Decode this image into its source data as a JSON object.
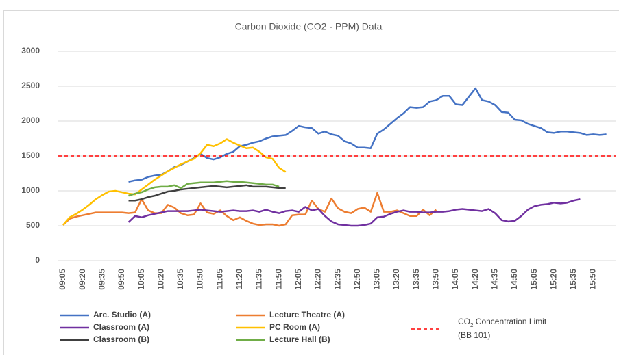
{
  "chart_data": {
    "type": "line",
    "title": "Carbon Dioxide (CO2 - PPM) Data",
    "categories": [
      "09:05",
      null,
      null,
      "09:20",
      null,
      null,
      "09:35",
      null,
      null,
      "09:50",
      null,
      null,
      "10:05",
      null,
      null,
      "10:20",
      null,
      null,
      "10:35",
      null,
      null,
      "10:50",
      null,
      null,
      "11:05",
      null,
      null,
      "11:20",
      null,
      null,
      "11:35",
      null,
      null,
      "11:50",
      null,
      null,
      "12:05",
      null,
      null,
      "12:20",
      null,
      null,
      "12:35",
      null,
      null,
      "12:50",
      null,
      null,
      "13:05",
      null,
      null,
      "13:20",
      null,
      null,
      "13:35",
      null,
      null,
      "13:50",
      null,
      null,
      "14:05",
      null,
      null,
      "14:20",
      null,
      null,
      "14:35",
      null,
      null,
      "14:50",
      null,
      null,
      "15:05",
      null,
      null,
      "15:20",
      null,
      null,
      "15:35",
      null,
      null,
      "15:50",
      null,
      null
    ],
    "series": [
      {
        "name": "Arc. Studio (A)",
        "color": "#4472c4",
        "values": [
          null,
          null,
          null,
          null,
          null,
          null,
          null,
          null,
          null,
          null,
          1130,
          1150,
          1160,
          1200,
          1220,
          1230,
          1280,
          1340,
          1370,
          1420,
          1470,
          1530,
          1470,
          1450,
          1480,
          1530,
          1560,
          1640,
          1660,
          1690,
          1710,
          1750,
          1780,
          1790,
          1800,
          1860,
          1930,
          1910,
          1900,
          1820,
          1850,
          1810,
          1790,
          1710,
          1680,
          1620,
          1620,
          1610,
          1820,
          1880,
          1960,
          2040,
          2110,
          2200,
          2190,
          2200,
          2280,
          2300,
          2360,
          2360,
          2240,
          2230,
          2350,
          2470,
          2300,
          2280,
          2230,
          2130,
          2120,
          2020,
          2010,
          1960,
          1930,
          1900,
          1840,
          1830,
          1850,
          1850,
          1840,
          1830,
          1800,
          1810,
          1800,
          1810
        ]
      },
      {
        "name": "Lecture Theatre (A)",
        "color": "#ed7d31",
        "values": [
          510,
          600,
          630,
          650,
          670,
          690,
          690,
          690,
          690,
          690,
          680,
          690,
          880,
          720,
          680,
          680,
          800,
          760,
          680,
          650,
          660,
          820,
          690,
          670,
          720,
          640,
          580,
          620,
          570,
          530,
          510,
          520,
          520,
          500,
          520,
          650,
          660,
          660,
          860,
          740,
          700,
          890,
          750,
          700,
          680,
          740,
          760,
          700,
          970,
          700,
          700,
          720,
          680,
          640,
          640,
          730,
          650,
          730,
          null,
          null,
          null,
          null,
          null,
          null,
          null,
          null,
          null,
          null,
          null,
          null,
          null,
          null,
          null,
          null,
          null,
          null,
          null,
          null,
          null,
          null,
          null,
          null,
          null,
          null
        ]
      },
      {
        "name": "Classroom (A)",
        "color": "#7030a0",
        "values": [
          null,
          null,
          null,
          null,
          null,
          null,
          null,
          null,
          null,
          null,
          550,
          640,
          620,
          650,
          670,
          690,
          710,
          710,
          710,
          710,
          720,
          730,
          720,
          710,
          700,
          710,
          720,
          710,
          710,
          720,
          700,
          730,
          700,
          680,
          710,
          720,
          700,
          770,
          720,
          740,
          640,
          560,
          520,
          510,
          500,
          500,
          510,
          530,
          620,
          630,
          670,
          700,
          720,
          700,
          700,
          690,
          690,
          700,
          700,
          710,
          730,
          740,
          730,
          720,
          710,
          740,
          680,
          580,
          560,
          570,
          640,
          730,
          780,
          800,
          810,
          830,
          820,
          830,
          860,
          880,
          null,
          null,
          null,
          null
        ]
      },
      {
        "name": "PC Room (A)",
        "color": "#ffc000",
        "values": [
          510,
          620,
          670,
          730,
          800,
          880,
          940,
          990,
          1000,
          980,
          960,
          950,
          1020,
          1090,
          1160,
          1220,
          1280,
          1330,
          1380,
          1420,
          1460,
          1540,
          1660,
          1640,
          1680,
          1740,
          1690,
          1650,
          1610,
          1620,
          1560,
          1480,
          1460,
          1330,
          1270,
          null,
          null,
          null,
          null,
          null,
          null,
          null,
          null,
          null,
          null,
          null,
          null,
          null,
          null,
          null,
          null,
          null,
          null,
          null,
          null,
          null,
          null,
          null,
          null,
          null,
          null,
          null,
          null,
          null,
          null,
          null,
          null,
          null,
          null,
          null,
          null,
          null,
          null,
          null,
          null,
          null,
          null,
          null,
          null,
          null,
          null,
          null,
          null,
          null
        ]
      },
      {
        "name": "Classroom (B)",
        "color": "#404040",
        "values": [
          null,
          null,
          null,
          null,
          null,
          null,
          null,
          null,
          null,
          null,
          860,
          860,
          880,
          910,
          930,
          960,
          990,
          1000,
          1020,
          1030,
          1040,
          1050,
          1060,
          1070,
          1060,
          1050,
          1060,
          1070,
          1080,
          1060,
          1060,
          1060,
          1050,
          1040,
          1040,
          null,
          null,
          null,
          null,
          null,
          null,
          null,
          null,
          null,
          null,
          null,
          null,
          null,
          null,
          null,
          null,
          null,
          null,
          null,
          null,
          null,
          null,
          null,
          null,
          null,
          null,
          null,
          null,
          null,
          null,
          null,
          null,
          null,
          null,
          null,
          null,
          null,
          null,
          null,
          null,
          null,
          null,
          null,
          null,
          null,
          null,
          null,
          null,
          null
        ]
      },
      {
        "name": "Lecture Hall (B)",
        "color": "#70ad47",
        "values": [
          null,
          null,
          null,
          null,
          null,
          null,
          null,
          null,
          null,
          null,
          930,
          960,
          980,
          1020,
          1050,
          1060,
          1060,
          1080,
          1040,
          1100,
          1110,
          1120,
          1120,
          1120,
          1130,
          1140,
          1130,
          1130,
          1120,
          1110,
          1100,
          1090,
          1090,
          1060,
          null,
          null,
          null,
          null,
          null,
          null,
          null,
          null,
          null,
          null,
          null,
          null,
          null,
          null,
          null,
          null,
          null,
          null,
          null,
          null,
          null,
          null,
          null,
          null,
          null,
          null,
          null,
          null,
          null,
          null,
          null,
          null,
          null,
          null,
          null,
          null,
          null,
          null,
          null,
          null,
          null,
          null,
          null,
          null,
          null,
          null,
          null,
          null,
          null,
          null
        ]
      }
    ],
    "reference_line": {
      "value": 1500,
      "color": "#ff0000",
      "label_parts": [
        "CO",
        "2",
        " Concentration Limit",
        "(BB 101)"
      ]
    },
    "ylim": [
      0,
      3000
    ],
    "yticks": [
      0,
      500,
      1000,
      1500,
      2000,
      2500,
      3000
    ],
    "grid": true
  }
}
